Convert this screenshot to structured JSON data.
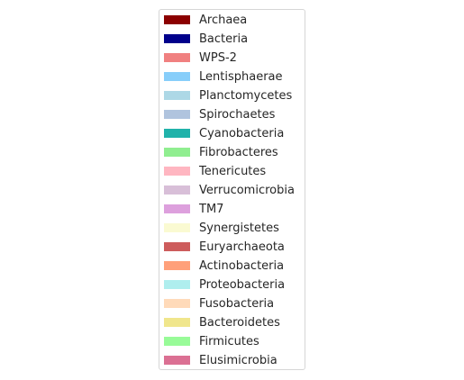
{
  "chart_data": {
    "type": "bar",
    "legend": {
      "placement": "center",
      "entries": [
        {
          "label": "Archaea",
          "color": "#8b0000"
        },
        {
          "label": "Bacteria",
          "color": "#00008b"
        },
        {
          "label": "WPS-2",
          "color": "#f08080"
        },
        {
          "label": "Lentisphaerae",
          "color": "#87cefa"
        },
        {
          "label": "Planctomycetes",
          "color": "#add8e6"
        },
        {
          "label": "Spirochaetes",
          "color": "#b0c4de"
        },
        {
          "label": "Cyanobacteria",
          "color": "#20b2aa"
        },
        {
          "label": "Fibrobacteres",
          "color": "#90ee90"
        },
        {
          "label": "Tenericutes",
          "color": "#ffb6c1"
        },
        {
          "label": "Verrucomicrobia",
          "color": "#d8bfd8"
        },
        {
          "label": "TM7",
          "color": "#dda0dd"
        },
        {
          "label": "Synergistetes",
          "color": "#fafad2"
        },
        {
          "label": "Euryarchaeota",
          "color": "#cd5c5c"
        },
        {
          "label": "Actinobacteria",
          "color": "#ffa07a"
        },
        {
          "label": "Proteobacteria",
          "color": "#afeeee"
        },
        {
          "label": "Fusobacteria",
          "color": "#ffdab9"
        },
        {
          "label": "Bacteroidetes",
          "color": "#f0e68c"
        },
        {
          "label": "Firmicutes",
          "color": "#98fb98"
        },
        {
          "label": "Elusimicrobia",
          "color": "#db7093"
        }
      ]
    }
  }
}
